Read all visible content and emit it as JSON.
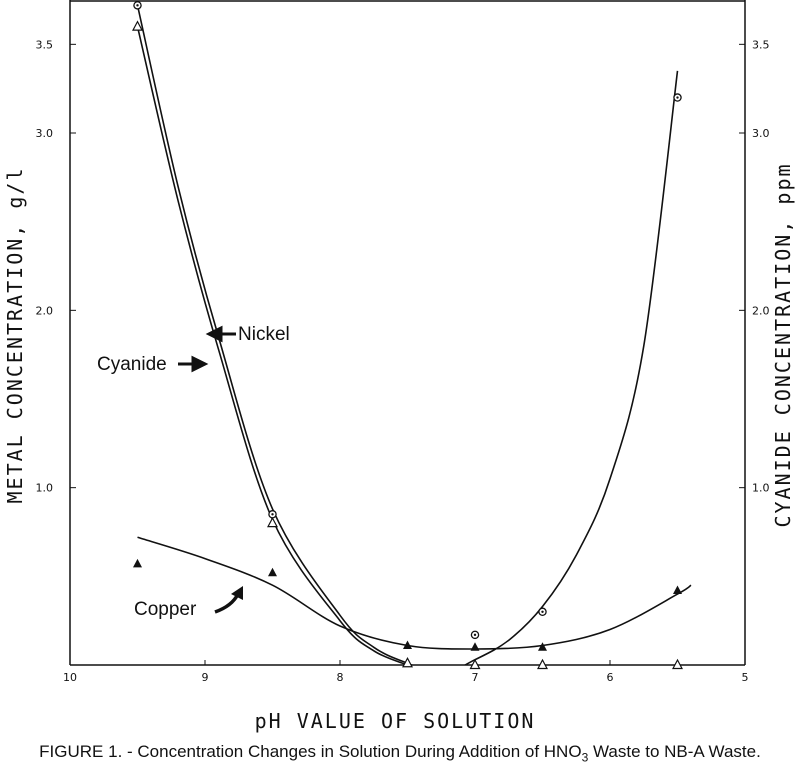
{
  "chart_data": {
    "type": "scatter",
    "xlabel": "pH VALUE OF SOLUTION",
    "ylabel": "METAL CONCENTRATION, g/l",
    "y2label": "CYANIDE CONCENTRATION, ppm",
    "x_reversed": true,
    "xlim": [
      10,
      5
    ],
    "ylim": [
      0,
      3.75
    ],
    "y2lim": [
      0,
      3.75
    ],
    "x_ticks": [
      "10",
      "9",
      "8",
      "7",
      "6",
      "5"
    ],
    "y_ticks": [
      "1.0",
      "2.0",
      "3.0",
      "3.5"
    ],
    "y2_ticks": [
      "1.0",
      "2.0",
      "3.0",
      "3.5"
    ],
    "grid": false,
    "legend": "none",
    "series": [
      {
        "name": "Nickel",
        "marker": "circle",
        "points": [
          [
            9.5,
            3.72
          ],
          [
            8.5,
            0.85
          ],
          [
            7.0,
            0.17
          ],
          [
            6.5,
            0.3
          ],
          [
            5.5,
            3.2
          ]
        ],
        "curve": [
          [
            9.5,
            3.72
          ],
          [
            9.2,
            2.7
          ],
          [
            8.9,
            1.85
          ],
          [
            8.5,
            0.88
          ],
          [
            8.0,
            0.28
          ],
          [
            7.75,
            0.1
          ],
          [
            7.5,
            0.01
          ],
          [
            7.25,
            -0.05
          ],
          [
            7.0,
            0.03
          ],
          [
            6.75,
            0.14
          ],
          [
            6.5,
            0.33
          ],
          [
            6.25,
            0.62
          ],
          [
            6.0,
            1.05
          ],
          [
            5.75,
            1.8
          ],
          [
            5.5,
            3.35
          ]
        ]
      },
      {
        "name": "Cyanide",
        "marker": "triangle-open",
        "points": [
          [
            9.5,
            3.6
          ],
          [
            8.5,
            0.8
          ],
          [
            7.5,
            0.01
          ],
          [
            7.0,
            0.0
          ],
          [
            6.5,
            0.0
          ],
          [
            5.5,
            0.0
          ]
        ],
        "curve": [
          [
            9.5,
            3.6
          ],
          [
            9.2,
            2.62
          ],
          [
            8.9,
            1.78
          ],
          [
            8.5,
            0.82
          ],
          [
            8.0,
            0.25
          ],
          [
            7.75,
            0.08
          ],
          [
            7.5,
            0.0
          ]
        ]
      },
      {
        "name": "Copper",
        "marker": "triangle-filled",
        "points": [
          [
            9.5,
            0.57
          ],
          [
            8.5,
            0.52
          ],
          [
            7.5,
            0.11
          ],
          [
            7.0,
            0.1
          ],
          [
            6.5,
            0.1
          ],
          [
            5.5,
            0.42
          ]
        ],
        "curve": [
          [
            9.5,
            0.72
          ],
          [
            9.0,
            0.6
          ],
          [
            8.5,
            0.45
          ],
          [
            8.0,
            0.22
          ],
          [
            7.5,
            0.11
          ],
          [
            7.0,
            0.09
          ],
          [
            6.5,
            0.11
          ],
          [
            6.0,
            0.2
          ],
          [
            5.5,
            0.4
          ],
          [
            5.4,
            0.45
          ]
        ]
      }
    ],
    "annotations": [
      {
        "text": "Nickel",
        "arrow": "left"
      },
      {
        "text": "Cyanide",
        "arrow": "right"
      },
      {
        "text": "Copper",
        "arrow": "curved"
      }
    ]
  },
  "caption": {
    "prefix": "FIGURE 1. - Concentration Changes in Solution During Addition of HNO",
    "sub": "3",
    "suffix": " Waste to NB-A Waste."
  }
}
